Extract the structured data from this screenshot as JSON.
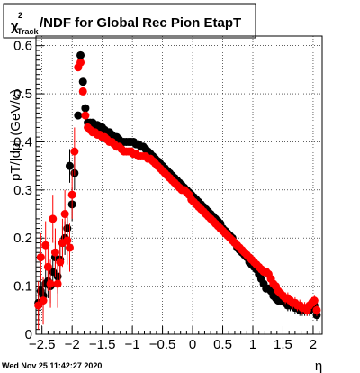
{
  "title": {
    "chi": "χ",
    "sup": "2",
    "sub": "Track",
    "rest": "/NDF for Global Rec Pion EtapT"
  },
  "footer": {
    "date": "Wed Nov 25 11:42:27 2020"
  },
  "chart_data": {
    "type": "scatter",
    "xlabel": "η",
    "ylabel": "pT/|dp| (GeV/c)",
    "xlim": [
      -2.6,
      2.15
    ],
    "ylim": [
      0,
      0.62
    ],
    "x_ticks": [
      "−2.5",
      "−2",
      "−1.5",
      "−1",
      "−0.5",
      "0",
      "0.5",
      "1",
      "1.5",
      "2"
    ],
    "x_tick_values": [
      -2.5,
      -2,
      -1.5,
      -1,
      -0.5,
      0,
      0.5,
      1,
      1.5,
      2
    ],
    "y_ticks": [
      "0",
      "0.1",
      "0.2",
      "0.3",
      "0.4",
      "0.5",
      "0.6"
    ],
    "y_tick_values": [
      0,
      0.1,
      0.2,
      0.3,
      0.4,
      0.5,
      0.6
    ],
    "grid": true,
    "series": [
      {
        "color": "#000000",
        "points": [
          [
            -2.56,
            0.065
          ],
          [
            -2.52,
            0.09
          ],
          [
            -2.48,
            0.08
          ],
          [
            -2.44,
            0.105
          ],
          [
            -2.4,
            0.11
          ],
          [
            -2.36,
            0.1
          ],
          [
            -2.32,
            0.13
          ],
          [
            -2.28,
            0.16
          ],
          [
            -2.24,
            0.12
          ],
          [
            -2.2,
            0.155
          ],
          [
            -2.16,
            0.19
          ],
          [
            -2.12,
            0.2
          ],
          [
            -2.08,
            0.22
          ],
          [
            -2.04,
            0.35
          ],
          [
            -2.0,
            0.27
          ],
          [
            -1.96,
            0.335
          ],
          [
            -1.9,
            0.455
          ],
          [
            -1.86,
            0.58
          ],
          [
            -1.82,
            0.525
          ],
          [
            -1.78,
            0.47
          ],
          [
            -1.74,
            0.44
          ],
          [
            -1.7,
            0.44
          ],
          [
            -1.66,
            0.44
          ],
          [
            -1.62,
            0.435
          ],
          [
            -1.58,
            0.435
          ],
          [
            -1.54,
            0.43
          ],
          [
            -1.5,
            0.43
          ],
          [
            -1.46,
            0.425
          ],
          [
            -1.42,
            0.42
          ],
          [
            -1.38,
            0.42
          ],
          [
            -1.34,
            0.415
          ],
          [
            -1.3,
            0.41
          ],
          [
            -1.26,
            0.41
          ],
          [
            -1.22,
            0.405
          ],
          [
            -1.18,
            0.4
          ],
          [
            -1.14,
            0.4
          ],
          [
            -1.1,
            0.4
          ],
          [
            -1.06,
            0.4
          ],
          [
            -1.02,
            0.4
          ],
          [
            -0.98,
            0.4
          ],
          [
            -0.94,
            0.395
          ],
          [
            -0.9,
            0.395
          ],
          [
            -0.86,
            0.39
          ],
          [
            -0.82,
            0.39
          ],
          [
            -0.78,
            0.385
          ],
          [
            -0.74,
            0.38
          ],
          [
            -0.7,
            0.375
          ],
          [
            -0.66,
            0.37
          ],
          [
            -0.62,
            0.365
          ],
          [
            -0.58,
            0.36
          ],
          [
            -0.54,
            0.355
          ],
          [
            -0.5,
            0.35
          ],
          [
            -0.46,
            0.345
          ],
          [
            -0.42,
            0.34
          ],
          [
            -0.38,
            0.335
          ],
          [
            -0.34,
            0.33
          ],
          [
            -0.3,
            0.325
          ],
          [
            -0.26,
            0.32
          ],
          [
            -0.22,
            0.315
          ],
          [
            -0.18,
            0.31
          ],
          [
            -0.14,
            0.305
          ],
          [
            -0.1,
            0.3
          ],
          [
            -0.06,
            0.295
          ],
          [
            -0.02,
            0.29
          ],
          [
            0.02,
            0.285
          ],
          [
            0.06,
            0.28
          ],
          [
            0.1,
            0.275
          ],
          [
            0.14,
            0.27
          ],
          [
            0.18,
            0.265
          ],
          [
            0.22,
            0.26
          ],
          [
            0.26,
            0.255
          ],
          [
            0.3,
            0.25
          ],
          [
            0.34,
            0.245
          ],
          [
            0.38,
            0.24
          ],
          [
            0.42,
            0.235
          ],
          [
            0.46,
            0.23
          ],
          [
            0.5,
            0.22
          ],
          [
            0.54,
            0.215
          ],
          [
            0.58,
            0.21
          ],
          [
            0.62,
            0.205
          ],
          [
            0.66,
            0.2
          ],
          [
            0.7,
            0.19
          ],
          [
            0.74,
            0.18
          ],
          [
            0.78,
            0.175
          ],
          [
            0.82,
            0.17
          ],
          [
            0.86,
            0.165
          ],
          [
            0.9,
            0.16
          ],
          [
            0.94,
            0.15
          ],
          [
            0.98,
            0.145
          ],
          [
            1.02,
            0.14
          ],
          [
            1.06,
            0.135
          ],
          [
            1.1,
            0.125
          ],
          [
            1.14,
            0.115
          ],
          [
            1.18,
            0.105
          ],
          [
            1.22,
            0.095
          ],
          [
            1.26,
            0.095
          ],
          [
            1.3,
            0.09
          ],
          [
            1.34,
            0.08
          ],
          [
            1.38,
            0.075
          ],
          [
            1.42,
            0.07
          ],
          [
            1.46,
            0.07
          ],
          [
            1.5,
            0.07
          ],
          [
            1.54,
            0.065
          ],
          [
            1.58,
            0.06
          ],
          [
            1.62,
            0.06
          ],
          [
            1.66,
            0.06
          ],
          [
            1.7,
            0.055
          ],
          [
            1.74,
            0.055
          ],
          [
            1.78,
            0.05
          ],
          [
            1.82,
            0.05
          ],
          [
            1.86,
            0.05
          ],
          [
            1.9,
            0.05
          ],
          [
            1.94,
            0.05
          ],
          [
            1.98,
            0.055
          ],
          [
            2.02,
            0.06
          ],
          [
            2.06,
            0.04
          ]
        ]
      },
      {
        "color": "#ff0000",
        "points": [
          [
            -2.56,
            0.06
          ],
          [
            -2.52,
            0.16
          ],
          [
            -2.48,
            0.07
          ],
          [
            -2.44,
            0.185
          ],
          [
            -2.4,
            0.14
          ],
          [
            -2.36,
            0.105
          ],
          [
            -2.32,
            0.24
          ],
          [
            -2.28,
            0.17
          ],
          [
            -2.24,
            0.105
          ],
          [
            -2.2,
            0.15
          ],
          [
            -2.16,
            0.19
          ],
          [
            -2.12,
            0.25
          ],
          [
            -2.08,
            0.195
          ],
          [
            -2.04,
            0.18
          ],
          [
            -2.0,
            0.29
          ],
          [
            -1.96,
            0.38
          ],
          [
            -1.9,
            0.555
          ],
          [
            -1.86,
            0.565
          ],
          [
            -1.82,
            0.505
          ],
          [
            -1.78,
            0.455
          ],
          [
            -1.74,
            0.43
          ],
          [
            -1.7,
            0.425
          ],
          [
            -1.66,
            0.42
          ],
          [
            -1.62,
            0.42
          ],
          [
            -1.58,
            0.415
          ],
          [
            -1.54,
            0.415
          ],
          [
            -1.5,
            0.41
          ],
          [
            -1.46,
            0.41
          ],
          [
            -1.42,
            0.405
          ],
          [
            -1.38,
            0.4
          ],
          [
            -1.34,
            0.4
          ],
          [
            -1.3,
            0.395
          ],
          [
            -1.26,
            0.39
          ],
          [
            -1.22,
            0.39
          ],
          [
            -1.18,
            0.385
          ],
          [
            -1.14,
            0.38
          ],
          [
            -1.1,
            0.38
          ],
          [
            -1.06,
            0.38
          ],
          [
            -1.02,
            0.38
          ],
          [
            -0.98,
            0.375
          ],
          [
            -0.94,
            0.375
          ],
          [
            -0.9,
            0.37
          ],
          [
            -0.86,
            0.37
          ],
          [
            -0.82,
            0.37
          ],
          [
            -0.78,
            0.37
          ],
          [
            -0.74,
            0.365
          ],
          [
            -0.7,
            0.365
          ],
          [
            -0.66,
            0.36
          ],
          [
            -0.62,
            0.355
          ],
          [
            -0.58,
            0.35
          ],
          [
            -0.54,
            0.345
          ],
          [
            -0.5,
            0.34
          ],
          [
            -0.46,
            0.335
          ],
          [
            -0.42,
            0.33
          ],
          [
            -0.38,
            0.325
          ],
          [
            -0.34,
            0.32
          ],
          [
            -0.3,
            0.315
          ],
          [
            -0.26,
            0.31
          ],
          [
            -0.22,
            0.305
          ],
          [
            -0.18,
            0.3
          ],
          [
            -0.14,
            0.3
          ],
          [
            -0.1,
            0.295
          ],
          [
            -0.06,
            0.29
          ],
          [
            -0.02,
            0.28
          ],
          [
            0.02,
            0.275
          ],
          [
            0.06,
            0.27
          ],
          [
            0.1,
            0.265
          ],
          [
            0.14,
            0.26
          ],
          [
            0.18,
            0.255
          ],
          [
            0.22,
            0.25
          ],
          [
            0.26,
            0.245
          ],
          [
            0.3,
            0.24
          ],
          [
            0.34,
            0.235
          ],
          [
            0.38,
            0.23
          ],
          [
            0.42,
            0.225
          ],
          [
            0.46,
            0.22
          ],
          [
            0.5,
            0.215
          ],
          [
            0.54,
            0.21
          ],
          [
            0.58,
            0.205
          ],
          [
            0.62,
            0.2
          ],
          [
            0.66,
            0.195
          ],
          [
            0.7,
            0.19
          ],
          [
            0.74,
            0.185
          ],
          [
            0.78,
            0.18
          ],
          [
            0.82,
            0.175
          ],
          [
            0.86,
            0.17
          ],
          [
            0.9,
            0.165
          ],
          [
            0.94,
            0.16
          ],
          [
            0.98,
            0.155
          ],
          [
            1.02,
            0.15
          ],
          [
            1.06,
            0.145
          ],
          [
            1.1,
            0.14
          ],
          [
            1.14,
            0.135
          ],
          [
            1.18,
            0.13
          ],
          [
            1.22,
            0.13
          ],
          [
            1.26,
            0.125
          ],
          [
            1.3,
            0.115
          ],
          [
            1.34,
            0.105
          ],
          [
            1.38,
            0.1
          ],
          [
            1.42,
            0.09
          ],
          [
            1.46,
            0.085
          ],
          [
            1.5,
            0.08
          ],
          [
            1.54,
            0.075
          ],
          [
            1.58,
            0.075
          ],
          [
            1.62,
            0.07
          ],
          [
            1.66,
            0.065
          ],
          [
            1.7,
            0.065
          ],
          [
            1.74,
            0.06
          ],
          [
            1.78,
            0.06
          ],
          [
            1.82,
            0.055
          ],
          [
            1.86,
            0.055
          ],
          [
            1.9,
            0.05
          ],
          [
            1.94,
            0.06
          ],
          [
            1.98,
            0.065
          ],
          [
            2.02,
            0.07
          ],
          [
            2.06,
            0.05
          ]
        ]
      }
    ]
  }
}
